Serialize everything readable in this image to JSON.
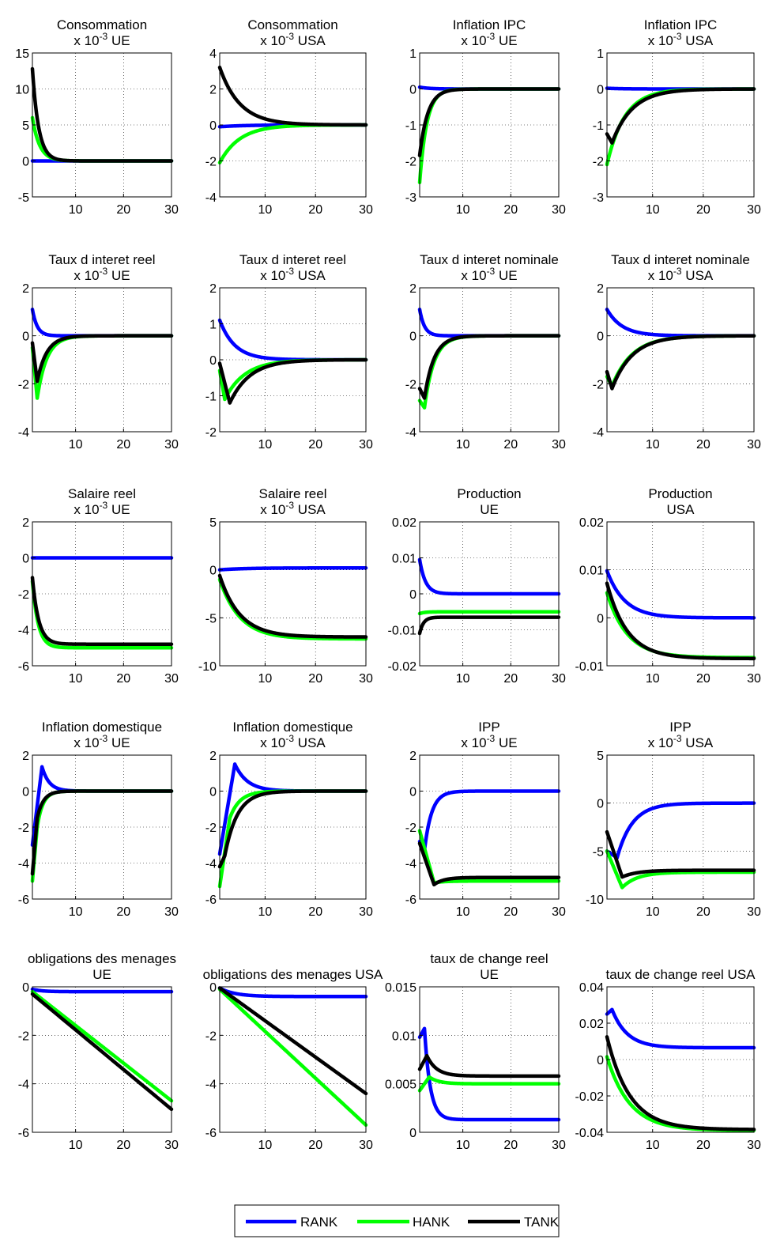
{
  "colors": {
    "RANK": "#0000ff",
    "HANK": "#00ff00",
    "TANK": "#000000"
  },
  "legend": {
    "items": [
      "RANK",
      "HANK",
      "TANK"
    ],
    "placement": "bottom-center"
  },
  "chart_data": [
    {
      "type": "line",
      "title": [
        "Consommation",
        "x 10^-3  UE"
      ],
      "xlabel": "",
      "ylabel": "",
      "xlim": [
        1,
        30
      ],
      "ylim": [
        -5,
        15
      ],
      "xticks": [
        "10",
        "20",
        "30"
      ],
      "yticks": [
        "-5",
        "0",
        "5",
        "10",
        "15"
      ],
      "grid": true,
      "sig": {
        "RANK": {
          "mode": "const",
          "c": 0
        },
        "HANK": {
          "mode": "exp",
          "s": 6,
          "e": 0,
          "tau": 1.5
        },
        "TANK": {
          "mode": "exp",
          "s": 12.8,
          "e": 0,
          "tau": 1.3
        }
      }
    },
    {
      "type": "line",
      "title": [
        "Consommation",
        "x 10^-3   USA"
      ],
      "xlabel": "",
      "ylabel": "",
      "xlim": [
        1,
        30
      ],
      "ylim": [
        -4,
        4
      ],
      "xticks": [
        "10",
        "20",
        "30"
      ],
      "yticks": [
        "-4",
        "-2",
        "0",
        "2",
        "4"
      ],
      "grid": true,
      "sig": {
        "RANK": {
          "mode": "exp",
          "s": -0.1,
          "e": 0,
          "tau": 5
        },
        "HANK": {
          "mode": "exp",
          "s": -2.1,
          "e": 0,
          "tau": 4
        },
        "TANK": {
          "mode": "exp",
          "s": 3.2,
          "e": 0,
          "tau": 4
        }
      }
    },
    {
      "type": "line",
      "title": [
        "Inflation IPC",
        "x 10^-3   UE"
      ],
      "xlabel": "",
      "ylabel": "",
      "xlim": [
        1,
        30
      ],
      "ylim": [
        -3,
        1
      ],
      "xticks": [
        "10",
        "20",
        "30"
      ],
      "yticks": [
        "-3",
        "-2",
        "-1",
        "0",
        "1"
      ],
      "grid": true,
      "sig": {
        "RANK": {
          "mode": "exp",
          "s": 0.05,
          "e": 0,
          "tau": 2
        },
        "HANK": {
          "mode": "exp",
          "s": -2.6,
          "e": 0,
          "tau": 1.5
        },
        "TANK": {
          "mode": "exp",
          "s": -1.85,
          "e": 0,
          "tau": 1.7
        }
      }
    },
    {
      "type": "line",
      "title": [
        "Inflation IPC",
        "x 10^-3   USA"
      ],
      "xlabel": "",
      "ylabel": "",
      "xlim": [
        1,
        30
      ],
      "ylim": [
        -3,
        1
      ],
      "xticks": [
        "10",
        "20",
        "30"
      ],
      "yticks": [
        "-3",
        "-2",
        "-1",
        "0",
        "1"
      ],
      "grid": true,
      "sig": {
        "RANK": {
          "mode": "exp",
          "s": 0.02,
          "e": 0,
          "tau": 3
        },
        "HANK": {
          "mode": "exp",
          "s": -2.1,
          "e": 0,
          "tau": 3.5
        },
        "TANK": {
          "mode": "hump",
          "s": -1.25,
          "p": -1.5,
          "tp": 2,
          "e": 0,
          "tau": 4
        }
      }
    },
    {
      "type": "line",
      "title": [
        "Taux d interet reel",
        "x 10^-3   UE"
      ],
      "xlabel": "",
      "ylabel": "",
      "xlim": [
        1,
        30
      ],
      "ylim": [
        -4,
        2
      ],
      "xticks": [
        "10",
        "20",
        "30"
      ],
      "yticks": [
        "-4",
        "-2",
        "0",
        "2"
      ],
      "grid": true,
      "sig": {
        "RANK": {
          "mode": "exp",
          "s": 1.1,
          "e": 0,
          "tau": 1
        },
        "HANK": {
          "mode": "hump",
          "s": -0.5,
          "p": -2.6,
          "tp": 2,
          "e": 0,
          "tau": 2
        },
        "TANK": {
          "mode": "hump",
          "s": -0.3,
          "p": -1.9,
          "tp": 2,
          "e": 0,
          "tau": 2
        }
      }
    },
    {
      "type": "line",
      "title": [
        "Taux d interet reel",
        "x 10^-3   USA"
      ],
      "xlabel": "",
      "ylabel": "",
      "xlim": [
        1,
        30
      ],
      "ylim": [
        -2,
        2
      ],
      "xticks": [
        "10",
        "20",
        "30"
      ],
      "yticks": [
        "-2",
        "-1",
        "0",
        "1",
        "2"
      ],
      "grid": true,
      "sig": {
        "RANK": {
          "mode": "exp",
          "s": 1.1,
          "e": 0,
          "tau": 3
        },
        "HANK": {
          "mode": "hump",
          "s": -0.3,
          "p": -1.1,
          "tp": 2,
          "e": 0,
          "tau": 4
        },
        "TANK": {
          "mode": "hump",
          "s": -0.1,
          "p": -1.2,
          "tp": 3,
          "e": 0,
          "tau": 4
        }
      }
    },
    {
      "type": "line",
      "title": [
        "Taux d interet nominale",
        "x 10^-3   UE"
      ],
      "xlabel": "",
      "ylabel": "",
      "xlim": [
        1,
        30
      ],
      "ylim": [
        -4,
        2
      ],
      "xticks": [
        "10",
        "20",
        "30"
      ],
      "yticks": [
        "-4",
        "-2",
        "0",
        "2"
      ],
      "grid": true,
      "sig": {
        "RANK": {
          "mode": "exp",
          "s": 1.1,
          "e": 0,
          "tau": 1
        },
        "HANK": {
          "mode": "hump",
          "s": -2.7,
          "p": -3,
          "tp": 2,
          "e": 0,
          "tau": 2
        },
        "TANK": {
          "mode": "hump",
          "s": -2.2,
          "p": -2.6,
          "tp": 2,
          "e": 0,
          "tau": 2
        }
      }
    },
    {
      "type": "line",
      "title": [
        "Taux d interet nominale",
        "x 10^-3   USA"
      ],
      "xlabel": "",
      "ylabel": "",
      "xlim": [
        1,
        30
      ],
      "ylim": [
        -4,
        2
      ],
      "xticks": [
        "10",
        "20",
        "30"
      ],
      "yticks": [
        "-4",
        "-2",
        "0",
        "2"
      ],
      "grid": true,
      "sig": {
        "RANK": {
          "mode": "exp",
          "s": 1.1,
          "e": 0,
          "tau": 3
        },
        "HANK": {
          "mode": "hump",
          "s": -1.7,
          "p": -2.1,
          "tp": 2,
          "e": 0,
          "tau": 4
        },
        "TANK": {
          "mode": "hump",
          "s": -1.5,
          "p": -2.2,
          "tp": 2,
          "e": 0,
          "tau": 4
        }
      }
    },
    {
      "type": "line",
      "title": [
        "Salaire reel",
        "x 10^-3   UE"
      ],
      "xlabel": "",
      "ylabel": "",
      "xlim": [
        1,
        30
      ],
      "ylim": [
        -6,
        2
      ],
      "xticks": [
        "10",
        "20",
        "30"
      ],
      "yticks": [
        "-6",
        "-4",
        "-2",
        "0",
        "2"
      ],
      "grid": true,
      "sig": {
        "RANK": {
          "mode": "const",
          "c": 0
        },
        "HANK": {
          "mode": "exp",
          "s": -1.3,
          "e": -5,
          "tau": 1.2
        },
        "TANK": {
          "mode": "exp",
          "s": -1.1,
          "e": -4.8,
          "tau": 1.3
        }
      }
    },
    {
      "type": "line",
      "title": [
        "Salaire reel",
        "x 10^-3   USA"
      ],
      "xlabel": "",
      "ylabel": "",
      "xlim": [
        1,
        30
      ],
      "ylim": [
        -10,
        5
      ],
      "xticks": [
        "10",
        "20",
        "30"
      ],
      "yticks": [
        "-10",
        "-5",
        "0",
        "5"
      ],
      "grid": true,
      "sig": {
        "RANK": {
          "mode": "exp",
          "s": 0,
          "e": 0.2,
          "tau": 5
        },
        "HANK": {
          "mode": "exp",
          "s": -1,
          "e": -7.2,
          "tau": 4
        },
        "TANK": {
          "mode": "exp",
          "s": -0.6,
          "e": -7,
          "tau": 4
        }
      }
    },
    {
      "type": "line",
      "title": [
        "Production",
        "UE"
      ],
      "xlabel": "",
      "ylabel": "",
      "xlim": [
        1,
        30
      ],
      "ylim": [
        -0.02,
        0.02
      ],
      "xticks": [
        "10",
        "20",
        "30"
      ],
      "yticks": [
        "-0.02",
        "-0.01",
        "0",
        "0.01",
        "0.02"
      ],
      "grid": true,
      "sig": {
        "RANK": {
          "mode": "exp",
          "s": 0.0095,
          "e": 0,
          "tau": 1.2
        },
        "HANK": {
          "mode": "exp",
          "s": -0.0055,
          "e": -0.005,
          "tau": 1
        },
        "TANK": {
          "mode": "exp",
          "s": -0.011,
          "e": -0.0065,
          "tau": 0.8
        }
      }
    },
    {
      "type": "line",
      "title": [
        "Production",
        "USA"
      ],
      "xlabel": "",
      "ylabel": "",
      "xlim": [
        1,
        30
      ],
      "ylim": [
        -0.01,
        0.02
      ],
      "xticks": [
        "10",
        "20",
        "30"
      ],
      "yticks": [
        "-0.01",
        "0",
        "0.01",
        "0.02"
      ],
      "grid": true,
      "sig": {
        "RANK": {
          "mode": "exp",
          "s": 0.0098,
          "e": 0,
          "tau": 3.5
        },
        "HANK": {
          "mode": "exp",
          "s": 0.0052,
          "e": -0.0083,
          "tau": 4
        },
        "TANK": {
          "mode": "exp",
          "s": 0.0072,
          "e": -0.0085,
          "tau": 4
        }
      }
    },
    {
      "type": "line",
      "title": [
        "Inflation domestique",
        "x 10^-3   UE"
      ],
      "xlabel": "",
      "ylabel": "",
      "xlim": [
        1,
        30
      ],
      "ylim": [
        -6,
        2
      ],
      "xticks": [
        "10",
        "20",
        "30"
      ],
      "yticks": [
        "-6",
        "-4",
        "-2",
        "0",
        "2"
      ],
      "grid": true,
      "sig": {
        "RANK": {
          "mode": "hump",
          "s": -3,
          "p": 1.35,
          "tp": 3,
          "e": 0,
          "tau": 1.5
        },
        "HANK": {
          "mode": "hump",
          "s": -5,
          "p": -2,
          "tp": 2,
          "e": 0,
          "tau": 1.2
        },
        "TANK": {
          "mode": "hump",
          "s": -4.6,
          "p": -1.5,
          "tp": 2,
          "e": 0,
          "tau": 1.3
        }
      }
    },
    {
      "type": "line",
      "title": [
        "Inflation domestique",
        "x 10^-3   USA"
      ],
      "xlabel": "",
      "ylabel": "",
      "xlim": [
        1,
        30
      ],
      "ylim": [
        -6,
        2
      ],
      "xticks": [
        "10",
        "20",
        "30"
      ],
      "yticks": [
        "-6",
        "-4",
        "-2",
        "0",
        "2"
      ],
      "grid": true,
      "sig": {
        "RANK": {
          "mode": "hump",
          "s": -3.5,
          "p": 1.5,
          "tp": 4,
          "e": 0,
          "tau": 2.5
        },
        "HANK": {
          "mode": "hump",
          "s": -5.3,
          "p": -1.5,
          "tp": 3,
          "e": 0,
          "tau": 2
        },
        "TANK": {
          "mode": "hump",
          "s": -4.2,
          "p": -3.6,
          "tp": 2,
          "e": 0,
          "tau": 2.5
        }
      }
    },
    {
      "type": "line",
      "title": [
        "IPP",
        "x 10^-3   UE"
      ],
      "xlabel": "",
      "ylabel": "",
      "xlim": [
        1,
        30
      ],
      "ylim": [
        -6,
        2
      ],
      "xticks": [
        "10",
        "20",
        "30"
      ],
      "yticks": [
        "-6",
        "-4",
        "-2",
        "0",
        "2"
      ],
      "grid": true,
      "sig": {
        "RANK": {
          "mode": "hump",
          "s": -2.8,
          "p": -3.3,
          "tp": 2,
          "e": 0,
          "tau": 1.5
        },
        "HANK": {
          "mode": "hump",
          "s": -2.2,
          "p": -5.1,
          "tp": 4,
          "e": -5,
          "tau": 2
        },
        "TANK": {
          "mode": "hump",
          "s": -2.9,
          "p": -5.2,
          "tp": 4,
          "e": -4.8,
          "tau": 2
        }
      }
    },
    {
      "type": "line",
      "title": [
        "IPP",
        "x 10^-3   USA"
      ],
      "xlabel": "",
      "ylabel": "",
      "xlim": [
        1,
        30
      ],
      "ylim": [
        -10,
        5
      ],
      "xticks": [
        "10",
        "20",
        "30"
      ],
      "yticks": [
        "-10",
        "-5",
        "0",
        "5"
      ],
      "grid": true,
      "sig": {
        "RANK": {
          "mode": "hump",
          "s": -5,
          "p": -5.7,
          "tp": 3,
          "e": 0,
          "tau": 3
        },
        "HANK": {
          "mode": "hump",
          "s": -5,
          "p": -8.8,
          "tp": 4,
          "e": -7.2,
          "tau": 3
        },
        "TANK": {
          "mode": "hump",
          "s": -3,
          "p": -7.7,
          "tp": 4,
          "e": -7,
          "tau": 3
        }
      }
    },
    {
      "type": "line",
      "title": [
        "obligations des menages",
        "UE"
      ],
      "xlabel": "",
      "ylabel": "",
      "xlim": [
        1,
        30
      ],
      "ylim": [
        -6,
        0
      ],
      "xticks": [
        "10",
        "20",
        "30"
      ],
      "yticks": [
        "-6",
        "-4",
        "-2",
        "0"
      ],
      "grid": true,
      "sig": {
        "RANK": {
          "mode": "exp",
          "s": -0.1,
          "e": -0.2,
          "tau": 2
        },
        "HANK": {
          "mode": "lin",
          "s": -0.2,
          "e": -4.7
        },
        "TANK": {
          "mode": "lin",
          "s": -0.3,
          "e": -5.05
        }
      }
    },
    {
      "type": "line",
      "title": [
        "obligations des menages USA"
      ],
      "xlabel": "",
      "ylabel": "",
      "xlim": [
        1,
        30
      ],
      "ylim": [
        -6,
        0
      ],
      "xticks": [
        "10",
        "20",
        "30"
      ],
      "yticks": [
        "-6",
        "-4",
        "-2",
        "0"
      ],
      "grid": true,
      "sig": {
        "RANK": {
          "mode": "exp",
          "s": -0.05,
          "e": -0.4,
          "tau": 3
        },
        "HANK": {
          "mode": "lin",
          "s": -0.1,
          "e": -5.7
        },
        "TANK": {
          "mode": "lin",
          "s": -0.05,
          "e": -4.4
        }
      }
    },
    {
      "type": "line",
      "title": [
        "taux de change reel",
        "UE"
      ],
      "xlabel": "",
      "ylabel": "",
      "xlim": [
        1,
        30
      ],
      "ylim": [
        0,
        0.015
      ],
      "xticks": [
        "10",
        "20",
        "30"
      ],
      "yticks": [
        "0",
        "0.005",
        "0.01",
        "0.015"
      ],
      "grid": true,
      "sig": {
        "RANK": {
          "mode": "hump",
          "s": 0.0098,
          "p": 0.0107,
          "tp": 2,
          "e": 0.0013,
          "tau": 1.2
        },
        "HANK": {
          "mode": "hump",
          "s": 0.0043,
          "p": 0.0057,
          "tp": 3,
          "e": 0.005,
          "tau": 2
        },
        "TANK": {
          "mode": "hump",
          "s": 0.0065,
          "p": 0.0079,
          "tp": 2.5,
          "e": 0.0058,
          "tau": 2
        }
      }
    },
    {
      "type": "line",
      "title": [
        "taux de change reel USA"
      ],
      "xlabel": "",
      "ylabel": "",
      "xlim": [
        1,
        30
      ],
      "ylim": [
        -0.04,
        0.04
      ],
      "xticks": [
        "10",
        "20",
        "30"
      ],
      "yticks": [
        "-0.04",
        "-0.02",
        "0",
        "0.02",
        "0.04"
      ],
      "grid": true,
      "sig": {
        "RANK": {
          "mode": "hump",
          "s": 0.025,
          "p": 0.0275,
          "tp": 2,
          "e": 0.0065,
          "tau": 3
        },
        "HANK": {
          "mode": "exp",
          "s": 0.0015,
          "e": -0.039,
          "tau": 4.5
        },
        "TANK": {
          "mode": "exp",
          "s": 0.0125,
          "e": -0.0385,
          "tau": 4.5
        }
      }
    }
  ]
}
